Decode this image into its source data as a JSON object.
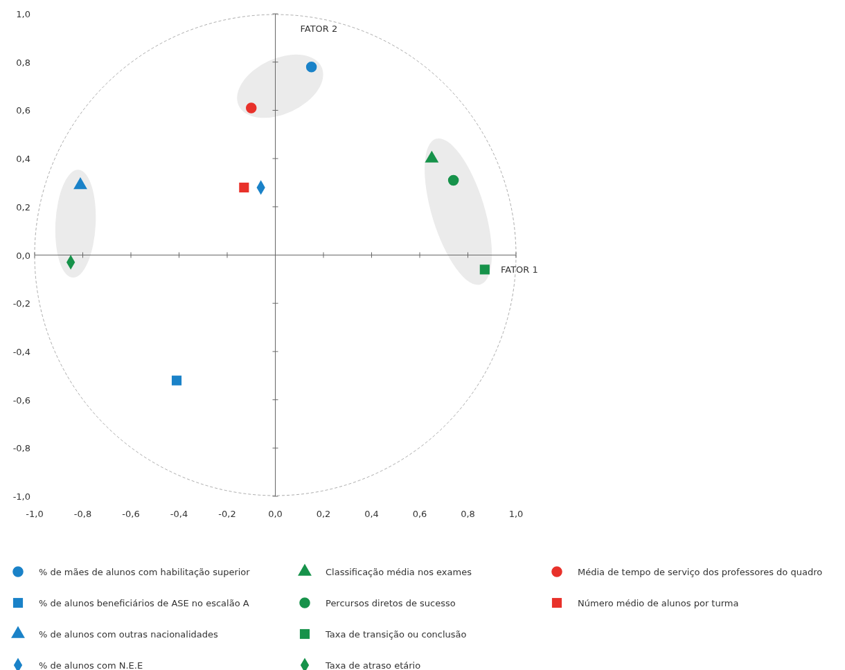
{
  "chart_data": {
    "type": "scatter",
    "xlabel": "FATOR 1",
    "ylabel": "FATOR 2",
    "xlim": [
      -1,
      1
    ],
    "ylim": [
      -1,
      1
    ],
    "xticks": [
      {
        "value": -1,
        "label": "-1,0"
      },
      {
        "value": -0.8,
        "label": "-0,8"
      },
      {
        "value": -0.6,
        "label": "-0,6"
      },
      {
        "value": -0.4,
        "label": "-0,4"
      },
      {
        "value": -0.2,
        "label": "-0,2"
      },
      {
        "value": 0,
        "label": "0,0"
      },
      {
        "value": 0.2,
        "label": "0,2"
      },
      {
        "value": 0.4,
        "label": "0,4"
      },
      {
        "value": 0.6,
        "label": "0,6"
      },
      {
        "value": 0.8,
        "label": "0,8"
      },
      {
        "value": 1,
        "label": "1,0"
      }
    ],
    "yticks": [
      {
        "value": -1,
        "label": "-1,0"
      },
      {
        "value": -0.8,
        "label": "-0,8"
      },
      {
        "value": -0.6,
        "label": "-0,6"
      },
      {
        "value": -0.4,
        "label": "-0,4"
      },
      {
        "value": -0.2,
        "label": "-0,2"
      },
      {
        "value": 0,
        "label": "0,0"
      },
      {
        "value": 0.2,
        "label": "0,2"
      },
      {
        "value": 0.4,
        "label": "0,4"
      },
      {
        "value": 0.6,
        "label": "0,6"
      },
      {
        "value": 0.8,
        "label": "0,8"
      },
      {
        "value": 1,
        "label": "1,0"
      }
    ],
    "legend": "bottom",
    "series": [
      {
        "name": "% de mães de alunos com habilitação superior",
        "color": "#1a82c8",
        "marker": "circle",
        "x": [
          0.15
        ],
        "values": [
          0.78
        ]
      },
      {
        "name": "% de alunos beneficiários de ASE no escalão A",
        "color": "#1a82c8",
        "marker": "square",
        "x": [
          -0.41
        ],
        "values": [
          -0.52
        ]
      },
      {
        "name": "% de alunos com outras nacionalidades",
        "color": "#1a82c8",
        "marker": "triangle",
        "x": [
          -0.81
        ],
        "values": [
          0.29
        ]
      },
      {
        "name": "% de alunos com N.E.E",
        "color": "#1a82c8",
        "marker": "diamond",
        "x": [
          -0.06
        ],
        "values": [
          0.28
        ]
      },
      {
        "name": "Classificação média nos exames",
        "color": "#16924a",
        "marker": "triangle",
        "x": [
          0.65
        ],
        "values": [
          0.4
        ]
      },
      {
        "name": "Percursos diretos de sucesso",
        "color": "#16924a",
        "marker": "circle",
        "x": [
          0.74
        ],
        "values": [
          0.31
        ]
      },
      {
        "name": "Taxa de transição ou conclusão",
        "color": "#16924a",
        "marker": "square",
        "x": [
          0.87
        ],
        "values": [
          -0.06
        ]
      },
      {
        "name": "Taxa de atraso etário",
        "color": "#16924a",
        "marker": "diamond",
        "x": [
          -0.85
        ],
        "values": [
          -0.03
        ]
      },
      {
        "name": "Média de tempo de serviço dos professores do quadro",
        "color": "#e8312a",
        "marker": "circle",
        "x": [
          -0.1
        ],
        "values": [
          0.61
        ]
      },
      {
        "name": "Número médio de alunos por turma",
        "color": "#e8312a",
        "marker": "square",
        "x": [
          -0.13
        ],
        "values": [
          0.28
        ]
      }
    ]
  }
}
